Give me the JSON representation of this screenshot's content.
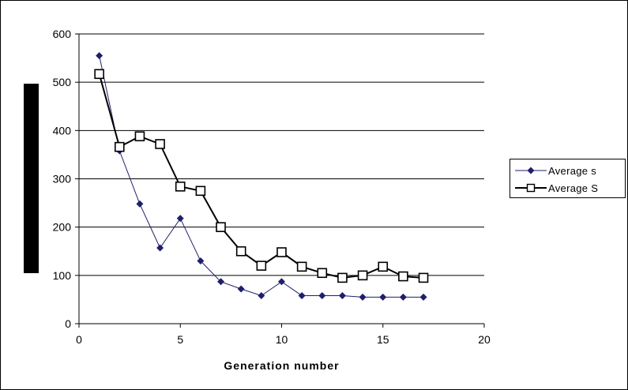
{
  "chart_data": {
    "type": "line",
    "xlabel": "Generation number",
    "ylabel": "",
    "xlim": [
      0,
      20
    ],
    "ylim": [
      0,
      600
    ],
    "xticks": [
      0,
      5,
      10,
      15,
      20
    ],
    "yticks": [
      0,
      100,
      200,
      300,
      400,
      500,
      600
    ],
    "grid": "horizontal",
    "legend_position": "right",
    "series": [
      {
        "name": "Average s",
        "marker": "filled-diamond",
        "color": "#1f1f6b",
        "x": [
          1,
          2,
          3,
          4,
          5,
          6,
          7,
          8,
          9,
          10,
          11,
          12,
          13,
          14,
          15,
          16,
          17
        ],
        "y": [
          555,
          358,
          248,
          157,
          218,
          130,
          87,
          72,
          58,
          87,
          58,
          58,
          58,
          55,
          55,
          55,
          55
        ]
      },
      {
        "name": "Average S",
        "marker": "open-square",
        "color": "#000000",
        "x": [
          1,
          2,
          3,
          4,
          5,
          6,
          7,
          8,
          9,
          10,
          11,
          12,
          13,
          14,
          15,
          16,
          17
        ],
        "y": [
          517,
          366,
          388,
          372,
          284,
          275,
          200,
          150,
          120,
          148,
          118,
          105,
          95,
          100,
          118,
          98,
          95
        ]
      }
    ]
  }
}
